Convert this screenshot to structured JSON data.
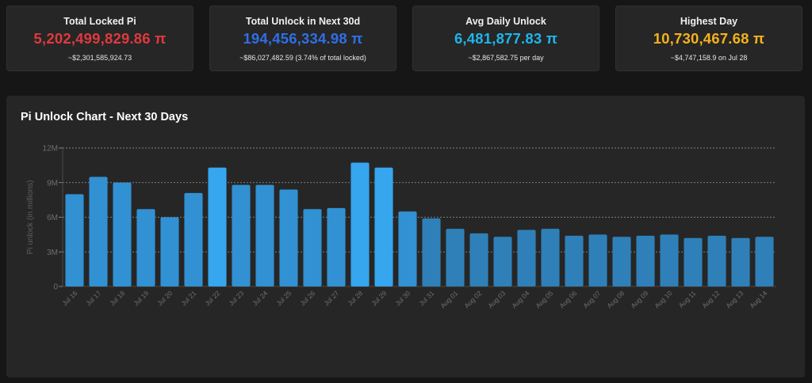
{
  "colors": {
    "card1_value": "#e0393e",
    "card2_value": "#2f6fe8",
    "card3_value": "#1fb5ea",
    "card4_value": "#f5b21c",
    "bar_high": "#36a6ef",
    "bar_normal": "#3191d3",
    "bar_low": "#2f80b8",
    "grid": "#9a9a9a",
    "tick_text": "#6f6f6f",
    "axis_label": "#5f5f5f"
  },
  "cards": [
    {
      "title": "Total Locked Pi",
      "value": "5,202,499,829.86 π",
      "sub": "~$2,301,585,924.73"
    },
    {
      "title": "Total Unlock in Next 30d",
      "value": "194,456,334.98 π",
      "sub": "~$86,027,482.59 (3.74% of total locked)"
    },
    {
      "title": "Avg Daily Unlock",
      "value": "6,481,877.83 π",
      "sub": "~$2,867,582.75 per day"
    },
    {
      "title": "Highest Day",
      "value": "10,730,467.68 π",
      "sub": "~$4,747,158.9 on Jul 28"
    }
  ],
  "panel": {
    "title": "Pi Unlock Chart - Next 30 Days"
  },
  "chart_data": {
    "type": "bar",
    "title": "Pi Unlock Chart - Next 30 Days",
    "ylabel": "Pi unlock (in millions)",
    "xlabel": "",
    "ylim": [
      0,
      12
    ],
    "y_ticks": [
      0,
      3,
      6,
      9,
      12
    ],
    "y_tick_labels": [
      "0",
      "3M",
      "6M",
      "9M",
      "12M"
    ],
    "grid": "horizontal dashed",
    "categories": [
      "Jul 16",
      "Jul 17",
      "Jul 18",
      "Jul 19",
      "Jul 20",
      "Jul 21",
      "Jul 22",
      "Jul 23",
      "Jul 24",
      "Jul 25",
      "Jul 26",
      "Jul 27",
      "Jul 28",
      "Jul 29",
      "Jul 30",
      "Jul 31",
      "Aug 01",
      "Aug 02",
      "Aug 03",
      "Aug 04",
      "Aug 05",
      "Aug 06",
      "Aug 07",
      "Aug 08",
      "Aug 09",
      "Aug 10",
      "Aug 11",
      "Aug 12",
      "Aug 13",
      "Aug 14"
    ],
    "values": [
      8.0,
      9.5,
      9.0,
      6.7,
      6.0,
      8.1,
      10.3,
      8.8,
      8.8,
      8.4,
      6.7,
      6.8,
      10.73,
      10.3,
      6.5,
      5.9,
      5.0,
      4.6,
      4.3,
      4.9,
      5.0,
      4.4,
      4.5,
      4.3,
      4.4,
      4.5,
      4.2,
      4.4,
      4.2,
      4.3
    ]
  }
}
